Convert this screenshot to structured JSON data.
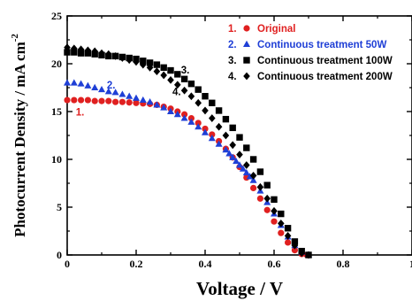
{
  "chart_data": {
    "type": "scatter",
    "xlabel": "Voltage / V",
    "ylabel_main": "Photocurrent Density / mA cm",
    "ylabel_sup": "-2",
    "xlim": [
      0,
      1.0
    ],
    "ylim": [
      0,
      25
    ],
    "xticks": [
      0,
      0.2,
      0.4,
      0.6,
      0.8,
      1.0
    ],
    "xtick_labels": [
      "0",
      "0.2",
      "0.4",
      "0.6",
      "0.8",
      "1"
    ],
    "yticks": [
      0,
      5,
      10,
      15,
      20,
      25
    ],
    "ytick_labels": [
      "0",
      "5",
      "10",
      "15",
      "20",
      "25"
    ],
    "grid": false,
    "legend_position": "top-right",
    "series": [
      {
        "name": "Original",
        "legend_number": "1.",
        "curve_label": "1.",
        "color": "#e02020",
        "marker": "circle",
        "x": [
          0.0,
          0.02,
          0.04,
          0.06,
          0.08,
          0.1,
          0.12,
          0.14,
          0.16,
          0.18,
          0.2,
          0.22,
          0.24,
          0.26,
          0.28,
          0.3,
          0.32,
          0.34,
          0.36,
          0.38,
          0.4,
          0.42,
          0.44,
          0.46,
          0.48,
          0.5,
          0.52,
          0.54,
          0.56,
          0.58,
          0.6,
          0.62,
          0.64,
          0.66,
          0.68,
          0.695
        ],
        "y": [
          16.2,
          16.2,
          16.2,
          16.2,
          16.1,
          16.1,
          16.1,
          16.0,
          16.0,
          15.95,
          15.9,
          15.85,
          15.8,
          15.7,
          15.5,
          15.3,
          15.0,
          14.7,
          14.3,
          13.8,
          13.2,
          12.6,
          11.9,
          11.1,
          10.2,
          9.2,
          8.1,
          7.0,
          5.9,
          4.7,
          3.5,
          2.3,
          1.3,
          0.5,
          0.1,
          0.0
        ]
      },
      {
        "name": "Continuous treatment 50W",
        "legend_number": "2.",
        "curve_label": "2.",
        "color": "#1f3fd6",
        "marker": "triangle",
        "x": [
          0.0,
          0.02,
          0.04,
          0.06,
          0.08,
          0.1,
          0.12,
          0.14,
          0.16,
          0.18,
          0.2,
          0.22,
          0.24,
          0.26,
          0.28,
          0.3,
          0.32,
          0.34,
          0.36,
          0.38,
          0.4,
          0.42,
          0.44,
          0.46,
          0.47,
          0.48,
          0.49,
          0.5,
          0.51,
          0.52,
          0.53,
          0.54,
          0.56,
          0.58,
          0.6,
          0.62,
          0.64,
          0.66,
          0.68,
          0.7
        ],
        "y": [
          18.0,
          18.0,
          17.9,
          17.7,
          17.5,
          17.3,
          17.1,
          17.0,
          16.8,
          16.6,
          16.4,
          16.2,
          16.0,
          15.7,
          15.4,
          15.0,
          14.7,
          14.3,
          13.9,
          13.4,
          12.8,
          12.2,
          11.6,
          11.0,
          10.6,
          10.2,
          9.8,
          9.4,
          9.0,
          8.6,
          8.2,
          7.8,
          6.7,
          5.5,
          4.3,
          3.1,
          1.9,
          1.0,
          0.3,
          0.0
        ]
      },
      {
        "name": "Continuous treatment 100W",
        "legend_number": "3.",
        "curve_label": "3.",
        "color": "#000000",
        "marker": "square",
        "x": [
          0.0,
          0.02,
          0.04,
          0.06,
          0.08,
          0.1,
          0.12,
          0.14,
          0.16,
          0.18,
          0.2,
          0.22,
          0.24,
          0.26,
          0.28,
          0.3,
          0.32,
          0.34,
          0.36,
          0.38,
          0.4,
          0.42,
          0.44,
          0.46,
          0.48,
          0.5,
          0.52,
          0.54,
          0.56,
          0.58,
          0.6,
          0.62,
          0.64,
          0.66,
          0.68,
          0.7
        ],
        "y": [
          21.2,
          21.2,
          21.1,
          21.1,
          21.0,
          20.9,
          20.8,
          20.8,
          20.7,
          20.6,
          20.5,
          20.3,
          20.1,
          19.9,
          19.6,
          19.3,
          18.9,
          18.4,
          17.9,
          17.3,
          16.6,
          15.9,
          15.1,
          14.2,
          13.3,
          12.3,
          11.2,
          10.0,
          8.7,
          7.3,
          5.8,
          4.3,
          2.8,
          1.4,
          0.4,
          0.0
        ]
      },
      {
        "name": "Continuous treatment 200W",
        "legend_number": "4.",
        "curve_label": "4.",
        "color": "#000000",
        "marker": "diamond",
        "x": [
          0.0,
          0.02,
          0.04,
          0.06,
          0.08,
          0.1,
          0.12,
          0.14,
          0.16,
          0.18,
          0.2,
          0.22,
          0.24,
          0.26,
          0.28,
          0.3,
          0.32,
          0.34,
          0.36,
          0.38,
          0.4,
          0.42,
          0.44,
          0.46,
          0.48,
          0.5,
          0.52,
          0.54,
          0.56,
          0.58,
          0.6,
          0.62,
          0.64,
          0.66,
          0.68,
          0.7
        ],
        "y": [
          21.7,
          21.6,
          21.5,
          21.4,
          21.3,
          21.1,
          21.0,
          20.8,
          20.6,
          20.4,
          20.2,
          19.9,
          19.6,
          19.2,
          18.8,
          18.3,
          17.8,
          17.2,
          16.6,
          15.9,
          15.1,
          14.3,
          13.4,
          12.5,
          11.5,
          10.5,
          9.4,
          8.3,
          7.1,
          5.9,
          4.6,
          3.3,
          2.0,
          1.0,
          0.2,
          0.0
        ]
      }
    ]
  }
}
